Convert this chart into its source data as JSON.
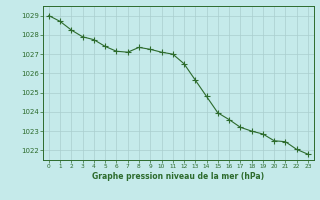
{
  "x": [
    0,
    1,
    2,
    3,
    4,
    5,
    6,
    7,
    8,
    9,
    10,
    11,
    12,
    13,
    14,
    15,
    16,
    17,
    18,
    19,
    20,
    21,
    22,
    23
  ],
  "y": [
    1029.0,
    1028.7,
    1028.25,
    1027.9,
    1027.75,
    1027.4,
    1027.15,
    1027.1,
    1027.35,
    1027.25,
    1027.1,
    1027.0,
    1026.5,
    1025.65,
    1024.8,
    1023.95,
    1023.6,
    1023.2,
    1023.0,
    1022.85,
    1022.5,
    1022.45,
    1022.05,
    1021.8
  ],
  "line_color": "#2d6b2d",
  "marker": "+",
  "marker_size": 4,
  "background_color": "#c5eaea",
  "grid_color": "#aacece",
  "xlabel": "Graphe pression niveau de la mer (hPa)",
  "ylim": [
    1021.5,
    1029.5
  ],
  "xlim": [
    -0.5,
    23.5
  ],
  "yticks": [
    1022,
    1023,
    1024,
    1025,
    1026,
    1027,
    1028,
    1029
  ],
  "xtick_labels": [
    "0",
    "1",
    "2",
    "3",
    "4",
    "5",
    "6",
    "7",
    "8",
    "9",
    "10",
    "11",
    "12",
    "13",
    "14",
    "15",
    "16",
    "17",
    "18",
    "19",
    "20",
    "21",
    "22",
    "23"
  ],
  "tick_color": "#2d6b2d",
  "label_color": "#2d6b2d",
  "spine_color": "#2d6b2d",
  "grid_major_color": "#aacece",
  "grid_minor_color": "#c0dede"
}
